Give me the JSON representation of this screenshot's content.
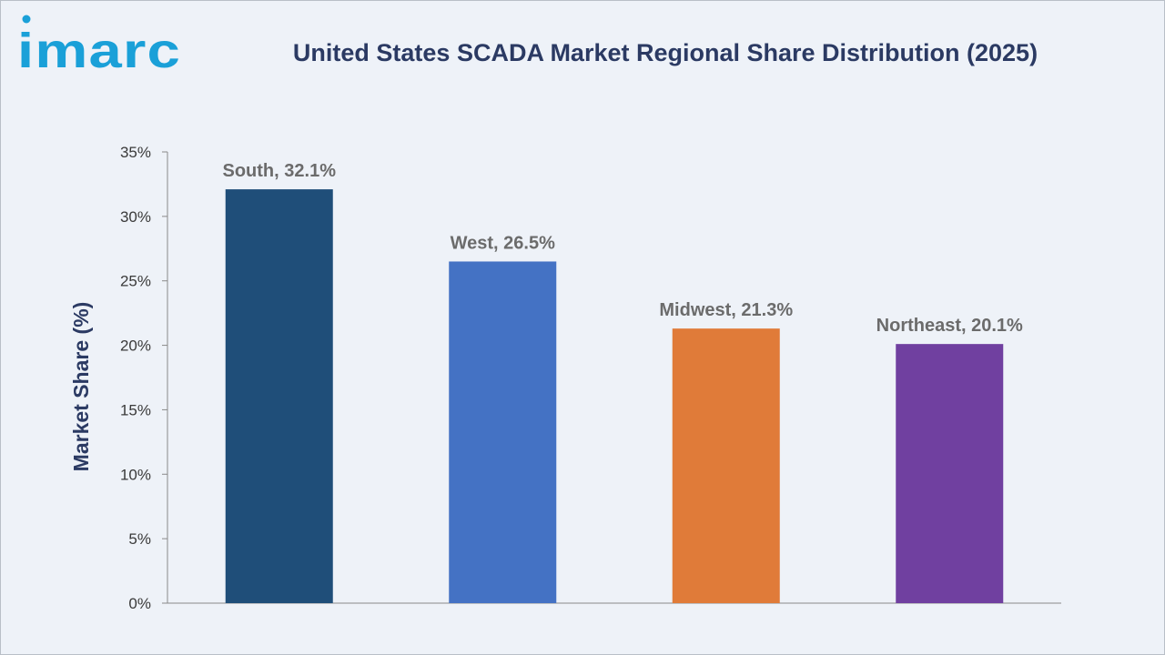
{
  "brand": {
    "logo_text": "imarc",
    "logo_color": "#1aa0d8"
  },
  "chart_data": {
    "type": "bar",
    "title": "United States SCADA Market Regional Share Distribution (2025)",
    "ylabel": "Market Share (%)",
    "xlabel": "",
    "categories": [
      "South",
      "West",
      "Midwest",
      "Northeast"
    ],
    "values": [
      32.1,
      26.5,
      21.3,
      20.1
    ],
    "data_labels": [
      "South, 32.1%",
      "West, 26.5%",
      "Midwest, 21.3%",
      "Northeast, 20.1%"
    ],
    "colors": [
      "#1f4e79",
      "#4472c4",
      "#e07b39",
      "#7040a0"
    ],
    "ylim": [
      0,
      35
    ],
    "yticks": [
      0,
      5,
      10,
      15,
      20,
      25,
      30,
      35
    ],
    "ytick_labels": [
      "0%",
      "5%",
      "10%",
      "15%",
      "20%",
      "25%",
      "30%",
      "35%"
    ],
    "grid": false,
    "legend": "none"
  }
}
